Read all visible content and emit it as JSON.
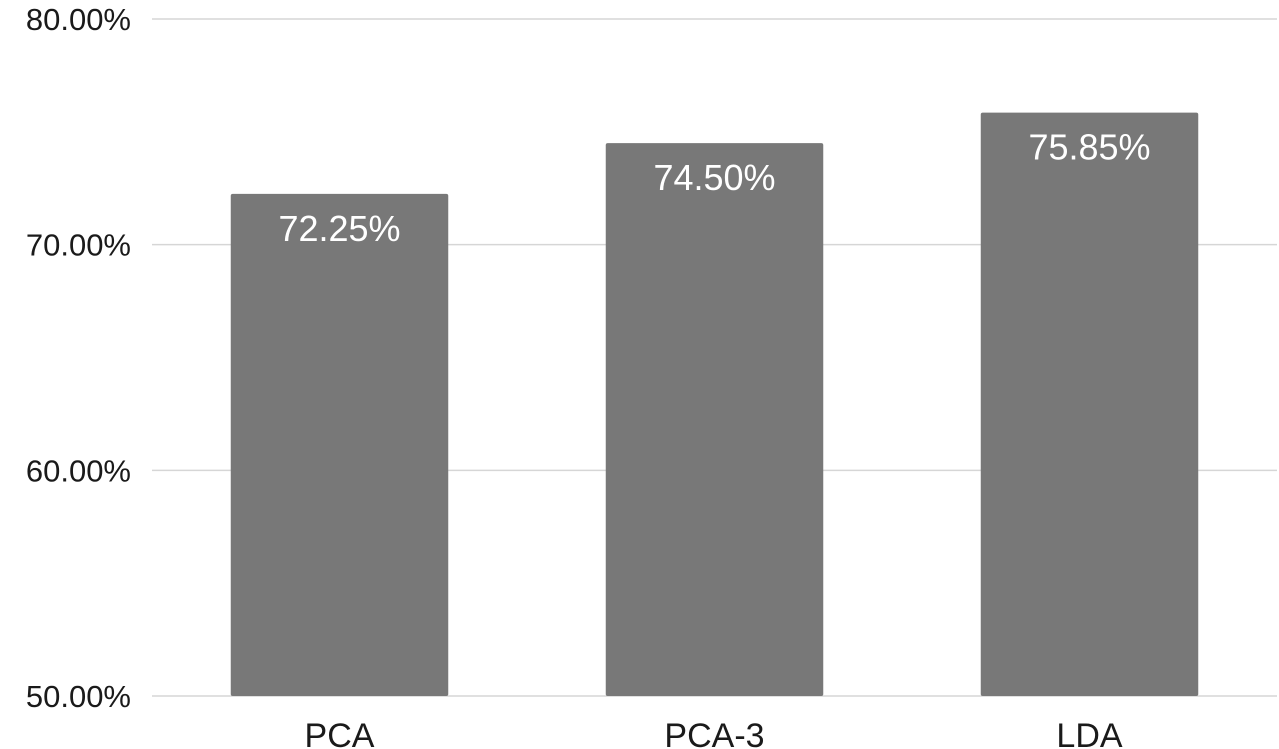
{
  "chart_data": {
    "type": "bar",
    "categories": [
      "PCA",
      "PCA-3",
      "LDA"
    ],
    "values": [
      72.25,
      74.5,
      75.85
    ],
    "data_labels": [
      "72.25%",
      "74.50%",
      "75.85%"
    ],
    "ylim": [
      50,
      80
    ],
    "yticks": [
      50,
      60,
      70,
      80
    ],
    "ytick_labels": [
      "50.00%",
      "60.00%",
      "70.00%",
      "80.00%"
    ],
    "title": "",
    "xlabel": "",
    "ylabel": "",
    "grid": true,
    "legend": "none",
    "colors": {
      "bar": "#787878",
      "grid": "#d6d6d6",
      "label": "#ffffff",
      "axis_text": "#1a1a1a"
    }
  }
}
